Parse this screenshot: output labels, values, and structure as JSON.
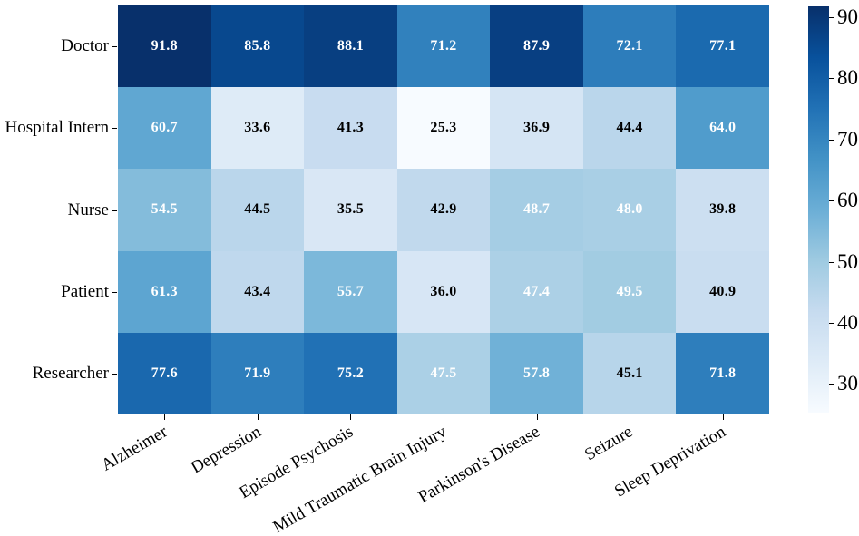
{
  "chart_data": {
    "type": "heatmap",
    "title": "",
    "xlabel": "",
    "ylabel": "",
    "rows": [
      "Doctor",
      "Hospital Intern",
      "Nurse",
      "Patient",
      "Researcher"
    ],
    "columns": [
      "Alzheimer",
      "Depression",
      "Episode Psychosis",
      "Mild Traumatic Brain Injury",
      "Parkinson's Disease",
      "Seizure",
      "Sleep Deprivation"
    ],
    "values": [
      [
        91.8,
        85.8,
        88.1,
        71.2,
        87.9,
        72.1,
        77.1
      ],
      [
        60.7,
        33.6,
        41.3,
        25.3,
        36.9,
        44.4,
        64.0
      ],
      [
        54.5,
        44.5,
        35.5,
        42.9,
        48.7,
        48.0,
        39.8
      ],
      [
        61.3,
        43.4,
        55.7,
        36.0,
        47.4,
        49.5,
        40.9
      ],
      [
        77.6,
        71.9,
        75.2,
        47.5,
        57.8,
        45.1,
        71.8
      ]
    ],
    "value_format_decimals": 1,
    "vmin": 25.3,
    "vmax": 91.8,
    "colormap": "Blues",
    "colormap_scale": [
      "#f7fbff",
      "#deebf7",
      "#c6dbef",
      "#9ecae1",
      "#6baed6",
      "#4292c6",
      "#2171b5",
      "#08519c",
      "#08306b"
    ],
    "annotation_light_color": "#ffffff",
    "annotation_dark_color": "#000000",
    "annotation_white_threshold": 46,
    "colorbar_ticks": [
      30,
      40,
      50,
      60,
      70,
      80,
      90
    ],
    "legend_position": "right",
    "grid": false,
    "background_color": "#ffffff",
    "xtick_rotation_deg": 30
  }
}
